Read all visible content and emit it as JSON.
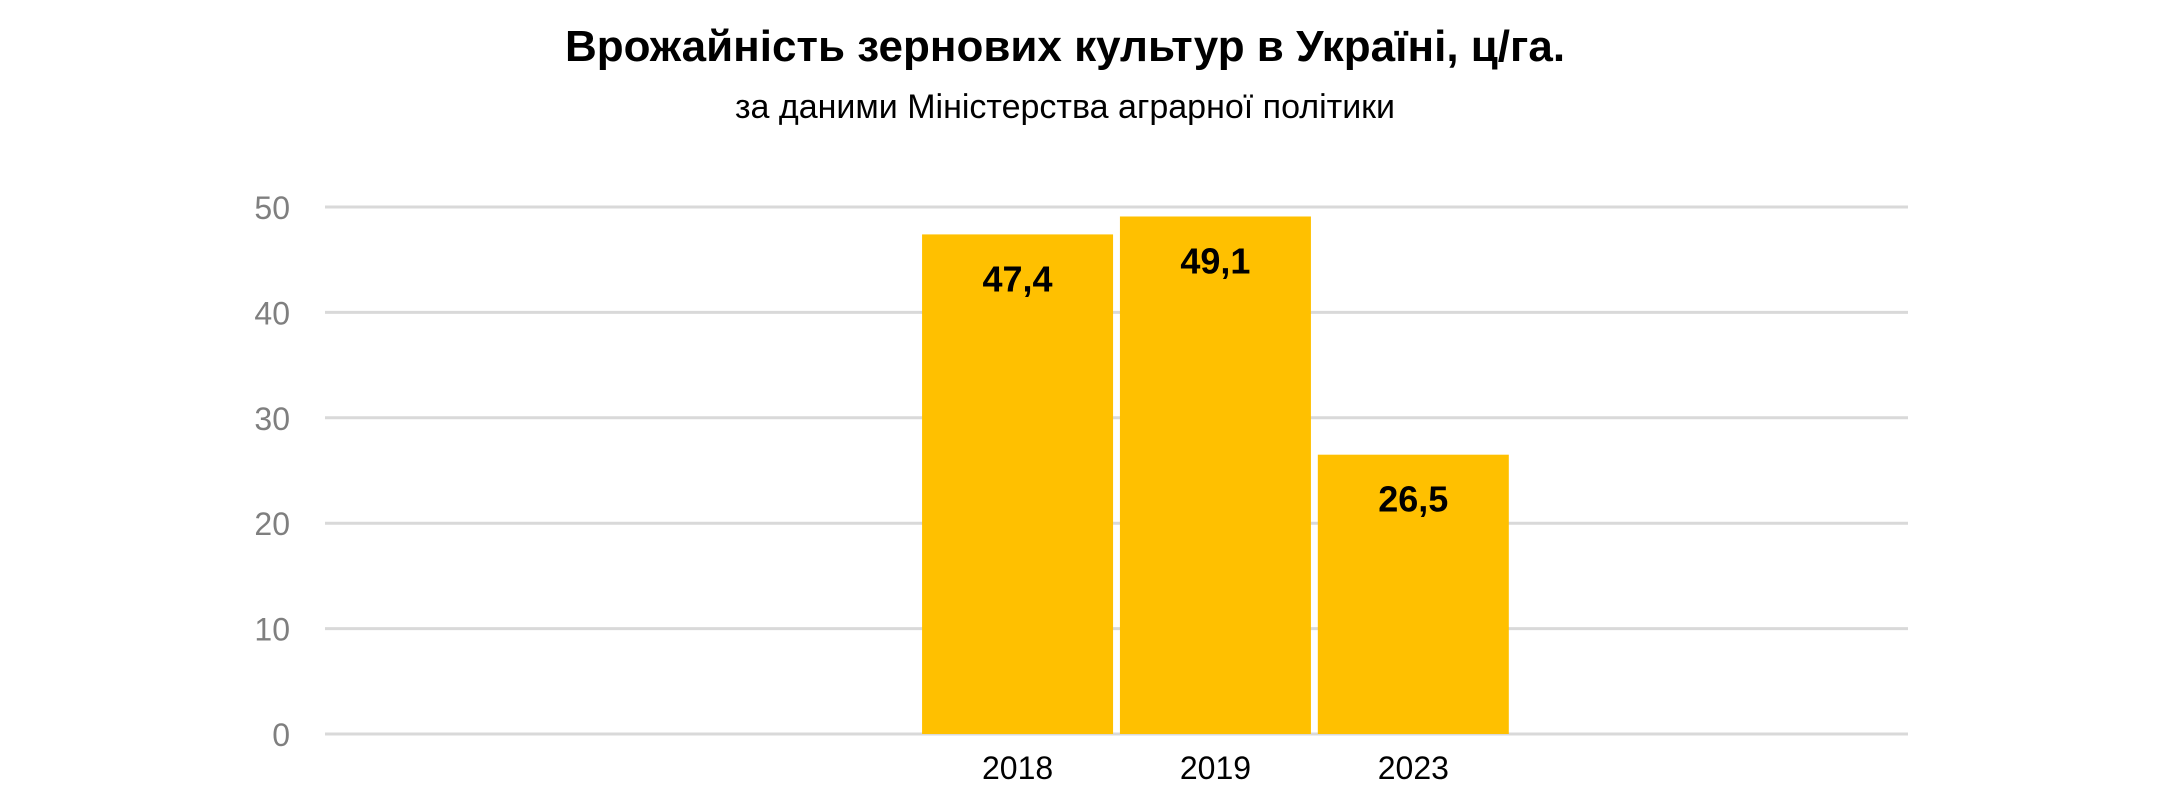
{
  "chart_data": {
    "type": "bar",
    "title": "Врожайність зернових культур в Україні, ц/га.",
    "subtitle": "за даними Міністерства аграрної політики",
    "categories": [
      "2018",
      "2019",
      "2023"
    ],
    "values": [
      47.4,
      49.1,
      26.5
    ],
    "data_labels": [
      "47,4",
      "49,1",
      "26,5"
    ],
    "xlabel": "",
    "ylabel": "",
    "ylim": [
      0,
      50
    ],
    "yticks": [
      0,
      10,
      20,
      30,
      40,
      50
    ],
    "grid": true,
    "legend": "none",
    "colors": {
      "bar": "#FFC000",
      "grid": "#D9D9D9",
      "tick_text": "#7F7F7F",
      "axis_text": "#000000",
      "label_text": "#000000"
    }
  }
}
